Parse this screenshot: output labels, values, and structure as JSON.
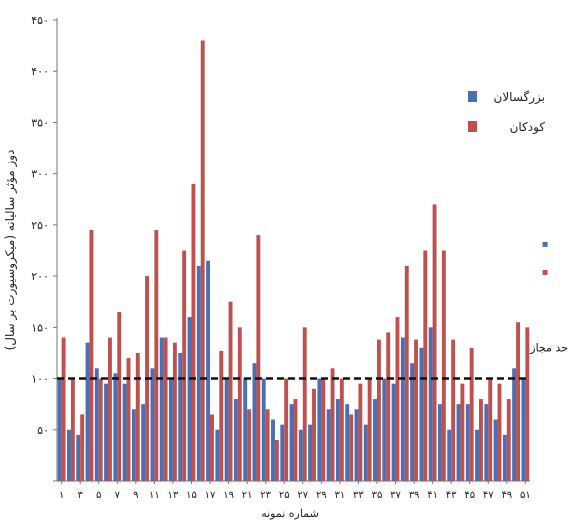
{
  "chart_data": {
    "type": "bar",
    "xlabel": "شماره نمونه",
    "ylabel": "دوز مؤثر سالیانه (میکروسیورت بر سال)",
    "ylim": [
      0,
      450
    ],
    "yticks": [
      {
        "value": 0,
        "label": ""
      },
      {
        "value": 50,
        "label": "۵۰"
      },
      {
        "value": 100,
        "label": "۱۰۰"
      },
      {
        "value": 150,
        "label": "۱۵۰"
      },
      {
        "value": 200,
        "label": "۲۰۰"
      },
      {
        "value": 250,
        "label": "۲۵۰"
      },
      {
        "value": 300,
        "label": "۳۰۰"
      },
      {
        "value": 350,
        "label": "۳۵۰"
      },
      {
        "value": 400,
        "label": "۴۰۰"
      },
      {
        "value": 450,
        "label": "۴۵۰"
      }
    ],
    "categories": [
      "1",
      "2",
      "3",
      "4",
      "5",
      "6",
      "7",
      "8",
      "9",
      "10",
      "11",
      "12",
      "13",
      "14",
      "15",
      "16",
      "17",
      "18",
      "19",
      "20",
      "21",
      "22",
      "23",
      "24",
      "25",
      "26",
      "27",
      "28",
      "29",
      "30",
      "31",
      "32",
      "33",
      "34",
      "35",
      "36",
      "37",
      "38",
      "39",
      "40",
      "41",
      "42",
      "43",
      "44",
      "45",
      "46",
      "47",
      "48",
      "49",
      "50",
      "51"
    ],
    "xtick_labels": [
      "۱",
      "۳",
      "۵",
      "۷",
      "۹",
      "۱۱",
      "۱۳",
      "۱۵",
      "۱۷",
      "۱۹",
      "۲۱",
      "۲۳",
      "۲۵",
      "۲۷",
      "۲۹",
      "۳۱",
      "۳۳",
      "۳۵",
      "۳۷",
      "۳۹",
      "۴۱",
      "۴۳",
      "۴۵",
      "۴۷",
      "۴۹",
      "۵۱"
    ],
    "series": [
      {
        "name": "بزرگسالان",
        "color": "#4a6fb3",
        "values": [
          100,
          50,
          45,
          135,
          110,
          95,
          105,
          95,
          70,
          75,
          110,
          140,
          100,
          125,
          160,
          210,
          215,
          50,
          100,
          80,
          100,
          115,
          100,
          60,
          55,
          75,
          50,
          55,
          100,
          70,
          80,
          75,
          70,
          55,
          80,
          100,
          95,
          140,
          115,
          130,
          150,
          75,
          50,
          75,
          75,
          50,
          75,
          60,
          45,
          110,
          100
        ]
      },
      {
        "name": "کودکان",
        "color": "#c0504d",
        "values": [
          140,
          100,
          65,
          245,
          100,
          140,
          165,
          120,
          125,
          200,
          245,
          140,
          135,
          225,
          290,
          430,
          65,
          127,
          175,
          150,
          70,
          240,
          70,
          40,
          100,
          80,
          150,
          90,
          100,
          110,
          100,
          65,
          95,
          100,
          138,
          145,
          160,
          210,
          138,
          225,
          270,
          225,
          138,
          95,
          130,
          80,
          100,
          95,
          80,
          155,
          150
        ]
      }
    ],
    "reference_line": {
      "value": 100,
      "label": "حد مجاز"
    },
    "legend": {
      "position": "top-right"
    },
    "side_markers": [
      "▪",
      "▪"
    ],
    "grid": false
  }
}
